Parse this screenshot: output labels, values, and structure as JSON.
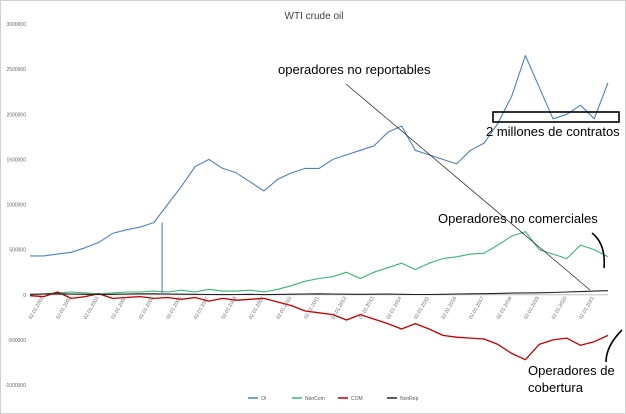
{
  "chart_data": {
    "type": "line",
    "title": "WTI crude oil",
    "ylim": [
      -1000000,
      3000000
    ],
    "y_ticks": [
      "3000000",
      "2500000",
      "2000000",
      "1500000",
      "1000000",
      "500000",
      "0",
      "-500000",
      "-1000000"
    ],
    "x_tick_labels": [
      "02.01.2001",
      "02.01.2002",
      "02.01.2003",
      "02.01.2004",
      "02.01.2005",
      "02.01.2006",
      "02.01.2007",
      "02.01.2008",
      "02.01.2009",
      "02.01.2010",
      "02.01.2011",
      "02.01.2012",
      "02.01.2013",
      "02.01.2014",
      "02.01.2015",
      "02.01.2016",
      "02.01.2017",
      "02.01.2018",
      "02.01.2019",
      "02.01.2020",
      "02.01.2021"
    ],
    "x": [
      2000.5,
      2001,
      2001.5,
      2002,
      2002.5,
      2003,
      2003.5,
      2004,
      2004.5,
      2005,
      2005.5,
      2006,
      2006.5,
      2007,
      2007.5,
      2008,
      2008.5,
      2009,
      2009.5,
      2010,
      2010.5,
      2011,
      2011.5,
      2012,
      2012.5,
      2013,
      2013.5,
      2014,
      2014.5,
      2015,
      2015.5,
      2016,
      2016.5,
      2017,
      2017.5,
      2018,
      2018.5,
      2019,
      2019.5,
      2020,
      2020.5,
      2021,
      2021.5
    ],
    "series": [
      {
        "name": "OI",
        "color": "#4F81BD",
        "values": [
          430000,
          430000,
          450000,
          470000,
          520000,
          580000,
          680000,
          720000,
          750000,
          800000,
          1000000,
          1200000,
          1420000,
          1500000,
          1400000,
          1350000,
          1250000,
          1150000,
          1280000,
          1350000,
          1400000,
          1400000,
          1500000,
          1550000,
          1600000,
          1650000,
          1800000,
          1870000,
          1600000,
          1550000,
          1500000,
          1450000,
          1600000,
          1680000,
          1900000,
          2200000,
          2650000,
          2300000,
          1950000,
          2000000,
          2100000,
          1950000,
          2350000
        ]
      },
      {
        "name": "NonCom",
        "color": "#3CB371",
        "values": [
          0,
          10000,
          20000,
          30000,
          20000,
          10000,
          20000,
          30000,
          30000,
          40000,
          30000,
          50000,
          30000,
          60000,
          40000,
          40000,
          50000,
          30000,
          60000,
          100000,
          150000,
          180000,
          200000,
          250000,
          180000,
          250000,
          300000,
          350000,
          280000,
          350000,
          400000,
          420000,
          450000,
          460000,
          550000,
          650000,
          700000,
          500000,
          450000,
          400000,
          550000,
          500000,
          420000
        ]
      },
      {
        "name": "COM",
        "color": "#C00000",
        "values": [
          -10000,
          -20000,
          30000,
          -40000,
          -20000,
          10000,
          -40000,
          -30000,
          -20000,
          -40000,
          -30000,
          -50000,
          -30000,
          -70000,
          -40000,
          -60000,
          -50000,
          -40000,
          -80000,
          -120000,
          -180000,
          -200000,
          -220000,
          -280000,
          -220000,
          -270000,
          -320000,
          -380000,
          -320000,
          -380000,
          -450000,
          -470000,
          -480000,
          -490000,
          -550000,
          -650000,
          -720000,
          -550000,
          -500000,
          -480000,
          -560000,
          -520000,
          -450000
        ]
      },
      {
        "name": "NonRep",
        "color": "#222222",
        "values": [
          5000,
          8000,
          10000,
          8000,
          5000,
          3000,
          5000,
          8000,
          10000,
          10000,
          8000,
          6000,
          5000,
          3000,
          2000,
          3000,
          5000,
          2000,
          4000,
          6000,
          8000,
          10000,
          8000,
          6000,
          5000,
          6000,
          8000,
          5000,
          3000,
          3000,
          5000,
          8000,
          10000,
          12000,
          15000,
          18000,
          20000,
          22000,
          25000,
          30000,
          35000,
          40000,
          45000
        ]
      }
    ]
  },
  "annotations": {
    "non_reportable": "operadores no reportables",
    "two_million": "2 millones de contratos",
    "non_commercial": "Operadores no comerciales",
    "hedgers_line1": "Operadores de",
    "hedgers_line2": "cobertura"
  }
}
